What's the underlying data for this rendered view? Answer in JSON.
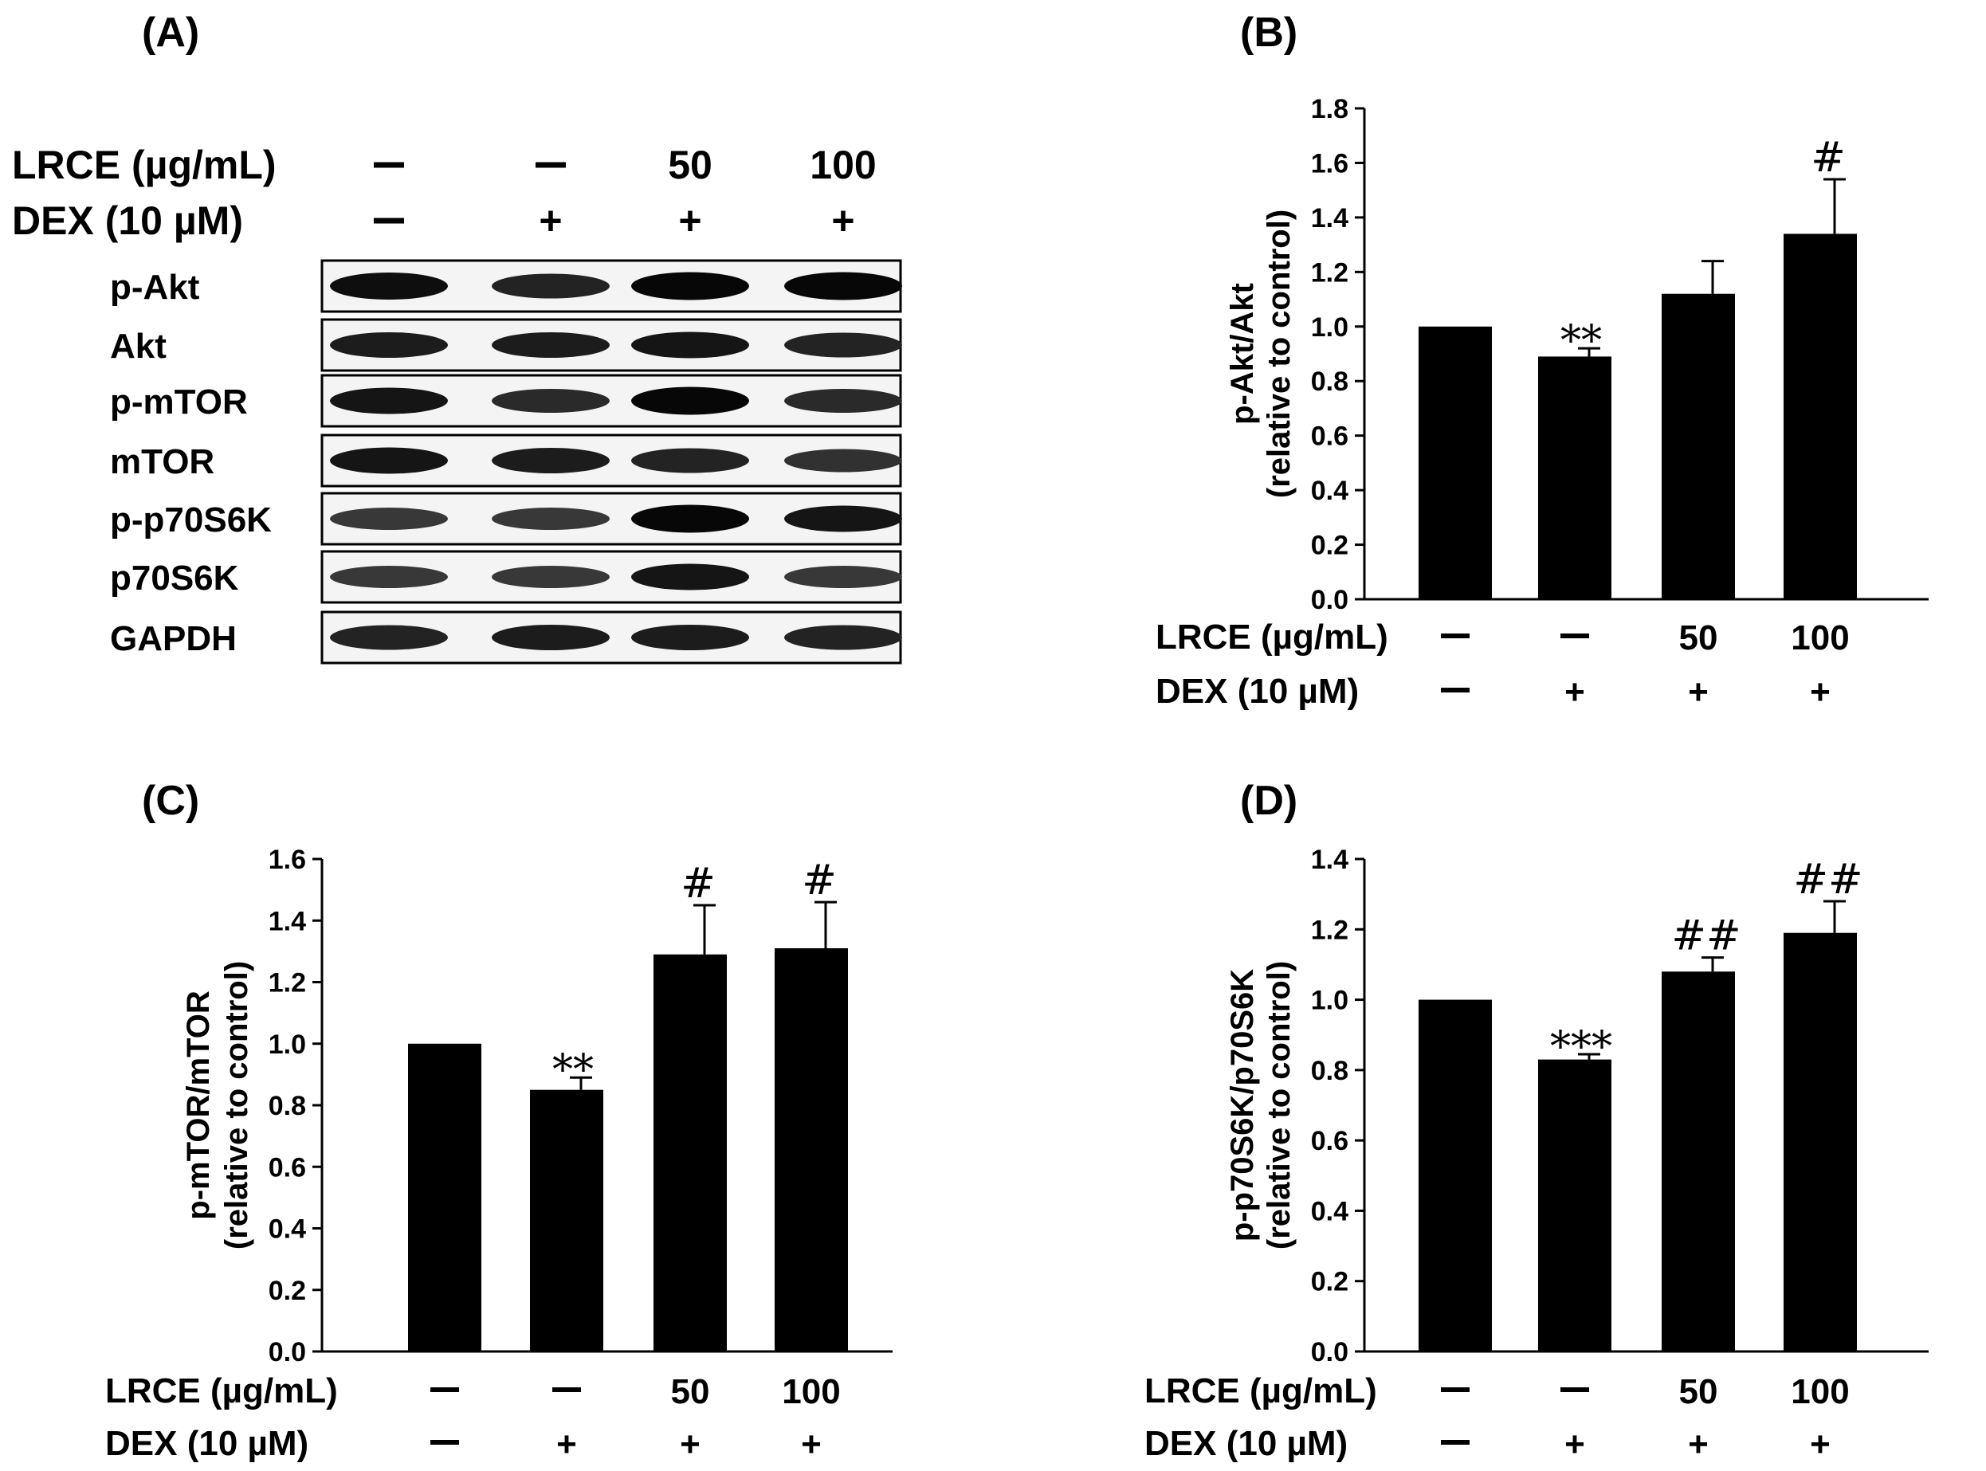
{
  "panels": {
    "A": "(A)",
    "B": "(B)",
    "C": "(C)",
    "D": "(D)"
  },
  "conditions": {
    "lrce_label": "LRCE (µg/mL)",
    "dex_label": "DEX (10 µM)",
    "lrce_values": [
      "—",
      "—",
      "50",
      "100"
    ],
    "dex_values": [
      "—",
      "+",
      "+",
      "+"
    ]
  },
  "blot": {
    "rows": [
      {
        "label": "p-Akt",
        "intensity": [
          0.9,
          0.75,
          0.95,
          0.95
        ]
      },
      {
        "label": "Akt",
        "intensity": [
          0.8,
          0.8,
          0.85,
          0.75
        ]
      },
      {
        "label": "p-mTOR",
        "intensity": [
          0.85,
          0.7,
          0.95,
          0.7
        ]
      },
      {
        "label": "mTOR",
        "intensity": [
          0.85,
          0.8,
          0.75,
          0.65
        ]
      },
      {
        "label": "p-p70S6K",
        "intensity": [
          0.6,
          0.6,
          0.95,
          0.85
        ]
      },
      {
        "label": "p70S6K",
        "intensity": [
          0.6,
          0.6,
          0.85,
          0.6
        ]
      },
      {
        "label": "GAPDH",
        "intensity": [
          0.75,
          0.8,
          0.8,
          0.75
        ]
      }
    ]
  },
  "chart_data": [
    {
      "panel": "B",
      "type": "bar",
      "categories": [
        "1",
        "2",
        "3",
        "4"
      ],
      "values": [
        1.0,
        0.89,
        1.12,
        1.34
      ],
      "errors": [
        0.0,
        0.03,
        0.12,
        0.2
      ],
      "annotations": [
        "",
        "**",
        "",
        "#"
      ],
      "ylabel_line1": "p-Akt/Akt",
      "ylabel_line2": "(relative to control)",
      "ylim": [
        0.0,
        1.8
      ],
      "yticks": [
        "0.0",
        "0.2",
        "0.4",
        "0.6",
        "0.8",
        "1.0",
        "1.2",
        "1.4",
        "1.6",
        "1.8"
      ],
      "color": "#000000"
    },
    {
      "panel": "C",
      "type": "bar",
      "categories": [
        "1",
        "2",
        "3",
        "4"
      ],
      "values": [
        1.0,
        0.85,
        1.29,
        1.31
      ],
      "errors": [
        0.0,
        0.04,
        0.16,
        0.15
      ],
      "annotations": [
        "",
        "**",
        "#",
        "#"
      ],
      "ylabel_line1": "p-mTOR/mTOR",
      "ylabel_line2": "(relative to control)",
      "ylim": [
        0.0,
        1.6
      ],
      "yticks": [
        "0.0",
        "0.2",
        "0.4",
        "0.6",
        "0.8",
        "1.0",
        "1.2",
        "1.4",
        "1.6"
      ],
      "color": "#000000"
    },
    {
      "panel": "D",
      "type": "bar",
      "categories": [
        "1",
        "2",
        "3",
        "4"
      ],
      "values": [
        1.0,
        0.83,
        1.08,
        1.19
      ],
      "errors": [
        0.0,
        0.015,
        0.04,
        0.09
      ],
      "annotations": [
        "",
        "***",
        "##",
        "##"
      ],
      "ylabel_line1": "p-p70S6K/p70S6K",
      "ylabel_line2": "(relative to control)",
      "ylim": [
        0.0,
        1.4
      ],
      "yticks": [
        "0.0",
        "0.2",
        "0.4",
        "0.6",
        "0.8",
        "1.0",
        "1.2",
        "1.4"
      ],
      "color": "#000000"
    }
  ]
}
